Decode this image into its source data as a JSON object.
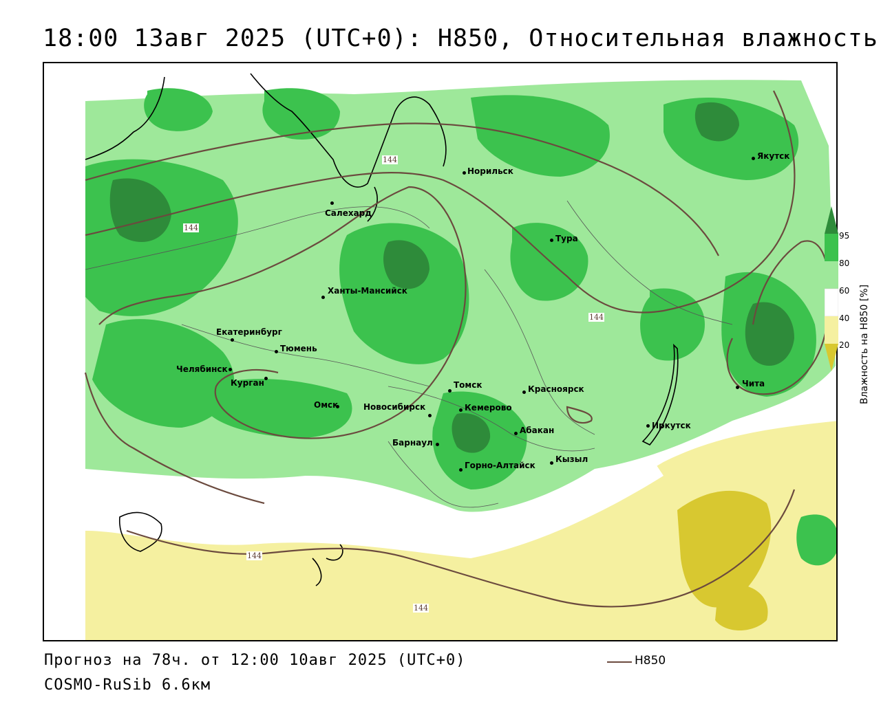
{
  "header": {
    "title": "18:00 13авг 2025 (UTC+0): H850, Относительная влажность"
  },
  "footer": {
    "forecast": "Прогноз на 78ч. от 12:00 10авг 2025 (UTC+0)",
    "model": "COSMO-RuSib 6.6км"
  },
  "legend": {
    "line_label": "H850",
    "line_color": "#6b4a3e"
  },
  "colorbar": {
    "title": "Влажность на H850 [%]",
    "ticks": [
      "95",
      "80",
      "60",
      "40",
      "20"
    ],
    "colors": {
      "above_95": "#2e8b3a",
      "c80_95": "#3cc24e",
      "c60_80": "#9ee89a",
      "c40_60": "#ffffff",
      "c20_40": "#f5f0a0",
      "below_20": "#d8c830"
    }
  },
  "cities": [
    {
      "name": "Норильск"
    },
    {
      "name": "Салехард"
    },
    {
      "name": "Тура"
    },
    {
      "name": "Якутск"
    },
    {
      "name": "Ханты-Мансийск"
    },
    {
      "name": "Екатеринбург"
    },
    {
      "name": "Тюмень"
    },
    {
      "name": "Челябинск"
    },
    {
      "name": "Курган"
    },
    {
      "name": "Омск"
    },
    {
      "name": "Новосибирск"
    },
    {
      "name": "Томск"
    },
    {
      "name": "Кемерово"
    },
    {
      "name": "Красноярск"
    },
    {
      "name": "Абакан"
    },
    {
      "name": "Барнаул"
    },
    {
      "name": "Горно-Алтайск"
    },
    {
      "name": "Кызыл"
    },
    {
      "name": "Иркутск"
    },
    {
      "name": "Чита"
    }
  ],
  "contour_labels": [
    "144",
    "144",
    "144",
    "144",
    "144"
  ]
}
